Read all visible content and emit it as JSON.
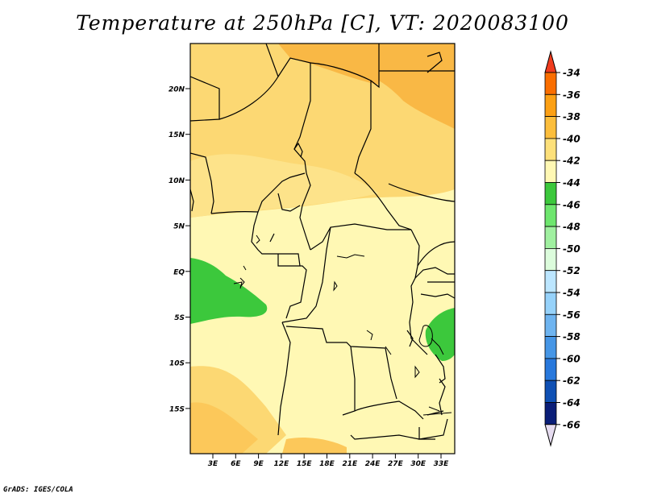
{
  "title": "Temperature at 250hPa [C], VT: 2020083100",
  "credit": "GrADS: IGES/COLA",
  "map": {
    "lat_labels": [
      "20N",
      "15N",
      "10N",
      "5N",
      "EQ",
      "5S",
      "10S",
      "15S"
    ],
    "lon_labels": [
      "3E",
      "6E",
      "9E",
      "12E",
      "15E",
      "18E",
      "21E",
      "24E",
      "27E",
      "30E",
      "33E"
    ]
  },
  "colorbar": {
    "levels": [
      "-34",
      "-36",
      "-38",
      "-40",
      "-42",
      "-44",
      "-46",
      "-48",
      "-50",
      "-52",
      "-54",
      "-56",
      "-58",
      "-60",
      "-62",
      "-64",
      "-66"
    ],
    "colors": [
      "#f03c1e",
      "#fa6e00",
      "#fca014",
      "#fcbe3c",
      "#fde07a",
      "#fff8b4",
      "#3cc83c",
      "#6ee66e",
      "#a0f0a0",
      "#dcfcdc",
      "#bce6ff",
      "#96d2fa",
      "#6eb4f0",
      "#4696e6",
      "#2878dc",
      "#0f50b4",
      "#0a1e78",
      "#e6dcf0"
    ]
  },
  "colors": {
    "warm_dark": "#f9b845",
    "warm_mid": "#fcd873",
    "warm_light": "#fde38a",
    "pale": "#fff8b4",
    "green": "#3cc83c"
  }
}
